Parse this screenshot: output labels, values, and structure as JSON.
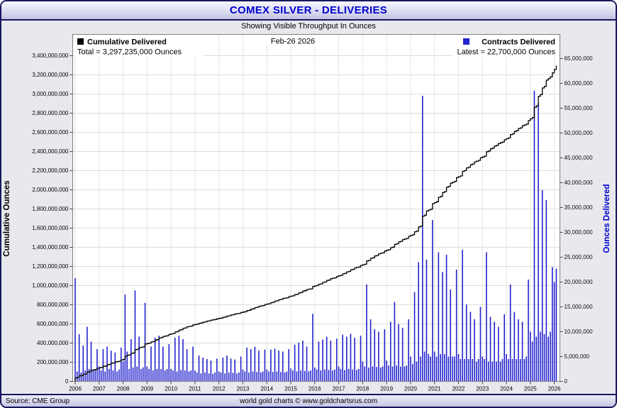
{
  "window": {
    "title": "COMEX SILVER - DELIVERIES",
    "subtitle": "Showing Visible Throughput In Ounces"
  },
  "legend": {
    "cumulative_label": "Cumulative Delivered",
    "cumulative_total": "Total = 3,297,235,000 Ounces",
    "date_label": "Feb-26  2026",
    "contracts_label": "Contracts Delivered",
    "contracts_latest": "Latest = 22,700,000 Ounces"
  },
  "axes": {
    "left_title": "Cumulative Ounces",
    "right_title": "Ounces Delivered"
  },
  "footer": {
    "source": "Source: CME Group",
    "credit": "world gold charts © www.goldchartsrus.com"
  },
  "colors": {
    "bar": "#2222cc",
    "line": "#000000",
    "right_axis": "#0000cc",
    "title": "#0000cd",
    "grid": "#dcdcdc",
    "plot_border": "#808080"
  },
  "chart_data": {
    "type": "bar",
    "title": "COMEX SILVER - DELIVERIES",
    "subtitle": "Showing Visible Throughput In Ounces",
    "as_of": "Feb-26 2026",
    "x_unit": "month",
    "x_range": [
      "2006-01",
      "2026-02"
    ],
    "years": [
      2006,
      2007,
      2008,
      2009,
      2010,
      2011,
      2012,
      2013,
      2014,
      2015,
      2016,
      2017,
      2018,
      2019,
      2020,
      2021,
      2022,
      2023,
      2024,
      2025,
      2026
    ],
    "left_axis": {
      "label": "Cumulative Ounces",
      "lim": [
        0,
        3630000000
      ],
      "ticks": [
        0,
        200000000,
        400000000,
        600000000,
        800000000,
        1000000000,
        1200000000,
        1400000000,
        1600000000,
        1800000000,
        2000000000,
        2200000000,
        2400000000,
        2600000000,
        2800000000,
        3000000000,
        3200000000,
        3400000000
      ]
    },
    "right_axis": {
      "label": "Ounces Delivered",
      "lim": [
        0,
        68000000
      ],
      "ticks": [
        0,
        5000000,
        10000000,
        15000000,
        20000000,
        25000000,
        30000000,
        35000000,
        40000000,
        45000000,
        50000000,
        55000000,
        60000000,
        65000000
      ]
    },
    "series": [
      {
        "name": "Contracts Delivered",
        "type": "bar",
        "axis": "right",
        "unit": "million ounces per month",
        "values_moz": [
          20.8,
          2.0,
          9.5,
          1.8,
          7.2,
          2.2,
          11.0,
          2.5,
          8.0,
          2.2,
          2.4,
          6.5,
          3.0,
          2.2,
          6.5,
          2.0,
          7.0,
          2.5,
          6.2,
          2.2,
          5.8,
          2.0,
          2.4,
          6.8,
          4.0,
          17.5,
          6.0,
          2.5,
          8.5,
          2.8,
          18.3,
          3.0,
          9.0,
          2.5,
          2.8,
          15.8,
          3.0,
          2.5,
          7.0,
          2.2,
          8.8,
          2.5,
          9.2,
          2.5,
          7.0,
          2.2,
          2.5,
          7.5,
          2.5,
          2.2,
          8.8,
          2.0,
          9.2,
          2.3,
          8.5,
          2.2,
          6.5,
          2.0,
          2.2,
          7.0,
          2.2,
          1.8,
          5.2,
          1.6,
          4.8,
          1.8,
          4.5,
          1.6,
          4.2,
          1.5,
          1.8,
          4.6,
          2.0,
          1.8,
          4.8,
          1.6,
          5.2,
          1.8,
          4.6,
          1.7,
          4.4,
          1.6,
          1.8,
          5.0,
          2.4,
          2.0,
          6.8,
          1.8,
          6.5,
          2.0,
          7.0,
          1.9,
          6.2,
          1.8,
          2.0,
          6.4,
          2.4,
          2.0,
          6.4,
          1.9,
          6.6,
          2.0,
          6.2,
          1.9,
          6.0,
          1.8,
          2.0,
          6.5,
          2.6,
          2.2,
          7.4,
          2.0,
          7.8,
          2.2,
          8.2,
          2.1,
          7.0,
          2.0,
          2.2,
          13.6,
          2.8,
          2.4,
          8.0,
          2.2,
          8.4,
          2.4,
          9.0,
          2.3,
          8.2,
          2.2,
          2.4,
          8.6,
          3.0,
          2.5,
          9.4,
          2.3,
          9.0,
          2.5,
          9.6,
          2.4,
          8.8,
          2.3,
          2.5,
          9.2,
          4.0,
          3.0,
          19.5,
          2.8,
          12.5,
          3.0,
          10.5,
          2.9,
          10.0,
          2.8,
          3.0,
          10.5,
          4.2,
          3.2,
          12.0,
          3.0,
          16.0,
          3.2,
          11.5,
          3.0,
          10.8,
          3.0,
          3.2,
          12.5,
          5.0,
          3.5,
          18.0,
          4.0,
          24.0,
          5.0,
          57.5,
          6.0,
          24.5,
          5.5,
          5.0,
          32.5,
          6.0,
          5.0,
          26.0,
          5.5,
          22.0,
          5.5,
          25.5,
          5.0,
          18.5,
          5.0,
          5.0,
          22.5,
          5.5,
          4.5,
          26.5,
          4.5,
          15.5,
          4.5,
          14.0,
          4.5,
          12.5,
          4.0,
          4.5,
          15.0,
          5.0,
          4.5,
          26.0,
          4.0,
          13.0,
          4.0,
          12.0,
          4.0,
          11.0,
          4.0,
          4.5,
          13.5,
          5.5,
          4.5,
          19.5,
          4.5,
          14.0,
          4.5,
          12.5,
          4.5,
          12.0,
          4.5,
          5.0,
          20.5,
          10.0,
          8.0,
          58.5,
          9.0,
          56.0,
          10.0,
          38.5,
          9.5,
          36.5,
          9.0,
          10.0,
          23.0,
          20.0,
          22.7
        ]
      },
      {
        "name": "Cumulative Delivered",
        "type": "line",
        "axis": "left",
        "derivation": "running total of monthly deliveries, scaled to end at total_oz",
        "total_oz": 3297235000
      }
    ],
    "latest_delivery_oz": 22700000,
    "grid": true,
    "legend_position": "top-inside"
  }
}
